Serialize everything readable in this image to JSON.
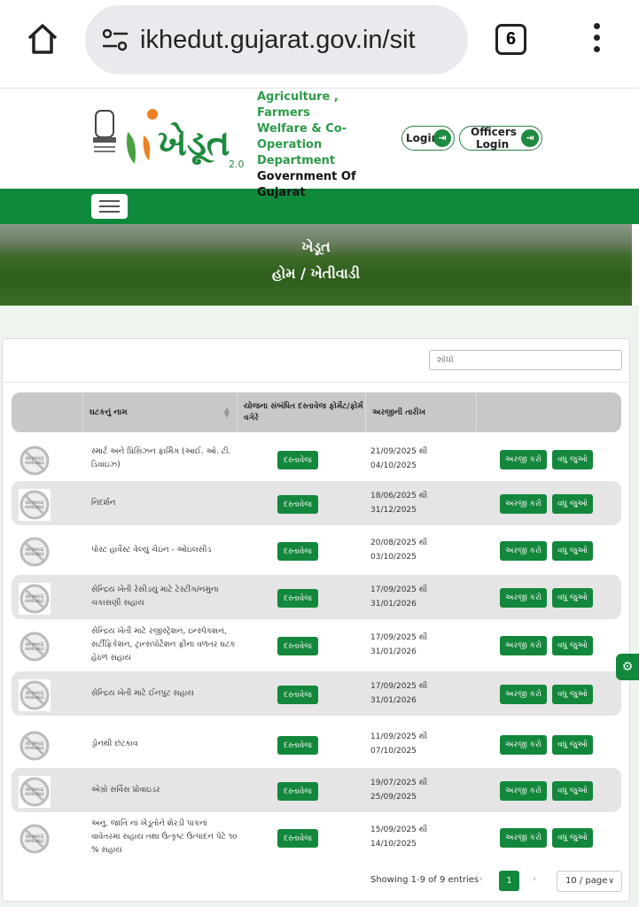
{
  "browser": {
    "url": "ikhedut.gujarat.gov.in/sit",
    "tab_count": "6"
  },
  "header": {
    "logo_text": "ખેડૂત 2.0",
    "dept_lines": [
      "Agriculture , Farmers",
      "Welfare & Co-",
      "Operation",
      "Department"
    ],
    "gov_lines": [
      "Government Of",
      "Gujarat"
    ],
    "login": "Login",
    "officers_login_1": "Officers",
    "officers_login_2": "Login"
  },
  "banner": {
    "title": "ખેડૂત",
    "breadcrumb": "હોમ / ખેતીવાડી"
  },
  "table": {
    "search_placeholder": "શોધો",
    "columns": [
      "ઘટકનું નામ",
      "યોજના સંબંધિત દસ્તાવેજ ફોર્મેટ/ફોર્મ વગેરે",
      "અરજીની તારીખ"
    ],
    "doc_label": "દસ્તાવેજ",
    "apply_label": "અરજી કરો",
    "more_label": "વધુ જુઓ",
    "rows": [
      {
        "name": "સ્માર્ટ અને પ્રિસિઝન ફાર્મિંગ (આઈ. ઓ. ટી. ડિવાઇઝ)",
        "from": "21/09/2025 થી",
        "to": "04/10/2025"
      },
      {
        "name": "નિદર્શન",
        "from": "18/06/2025 થી",
        "to": "31/12/2025"
      },
      {
        "name": "પોસ્ટ હાર્વેસ્ટ વેલ્યુ ચેઇન - ઓઇલસીડ",
        "from": "20/08/2025 થી",
        "to": "03/10/2025"
      },
      {
        "name": "સેન્દ્રિય ખેતી રેસીડયુ માટે ટેસ્ટીંગ/નમુના ચકાસણી સહાય",
        "from": "17/09/2025 થી",
        "to": "31/01/2026"
      },
      {
        "name": "સેન્દ્રિય ખેતી માટે રજીસ્ટ્રેશન, ઇન્સ્પેકશન, સર્ટીફિકેશન, ટ્રાન્સપોર્ટેશન ફીના વળતર ઘટક હેઠળ સહાય",
        "from": "17/09/2025 થી",
        "to": "31/01/2026"
      },
      {
        "name": "સેન્દ્રિય ખેતી માટે ઈનપુટ સહાય",
        "from": "17/09/2025 થી",
        "to": "31/01/2026"
      },
      {
        "name": "ડ્રોનથી છંટકાવ",
        "from": "11/09/2025 થી",
        "to": "07/10/2025"
      },
      {
        "name": "એગ્રો સર્વિસ પ્રોવાઇડર",
        "from": "19/07/2025 થી",
        "to": "25/09/2025"
      },
      {
        "name": "અનુ. જાતિ નાં ખેડૂતોને શેરડી પાકનાં વાવેતરમાં સહાય તથા ઉત્કૃષ્ટ ઉત્પાદન પેટે ૧૦ % સહાય",
        "from": "15/09/2025 થી",
        "to": "14/10/2025"
      }
    ],
    "showing": "Showing 1-9 of 9 entries",
    "page": "1",
    "page_size": "10 / page"
  },
  "colors": {
    "primary_green": "#13873c",
    "accent_orange": "#f08020"
  }
}
